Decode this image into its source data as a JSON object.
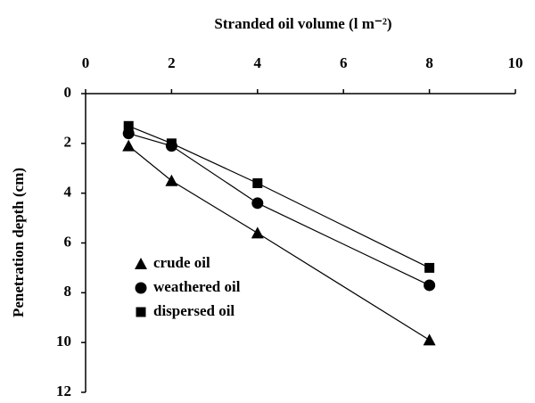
{
  "chart_data": {
    "type": "scatter",
    "xlabel": "Stranded oil volume (l m⁻²)",
    "ylabel": "Penetration depth (cm)",
    "xlim": [
      0,
      10
    ],
    "xticks": [
      0,
      2,
      4,
      6,
      8,
      10
    ],
    "ylim": [
      0,
      12
    ],
    "yticks": [
      0,
      2,
      4,
      6,
      8,
      10,
      12
    ],
    "y_inverted": true,
    "legend": "lower left",
    "series": [
      {
        "name": "crude oil",
        "color": "#000000",
        "marker": "triangle",
        "x": [
          1,
          2,
          4,
          8
        ],
        "values": [
          2.1,
          3.5,
          5.6,
          9.9
        ]
      },
      {
        "name": "weathered oil",
        "color": "#000000",
        "marker": "circle",
        "x": [
          1,
          2,
          4,
          8
        ],
        "values": [
          1.6,
          2.1,
          4.4,
          7.7
        ]
      },
      {
        "name": "dispersed oil",
        "color": "#000000",
        "marker": "square",
        "x": [
          1,
          2,
          4,
          8
        ],
        "values": [
          1.3,
          2.0,
          3.6,
          7.0
        ]
      }
    ]
  }
}
